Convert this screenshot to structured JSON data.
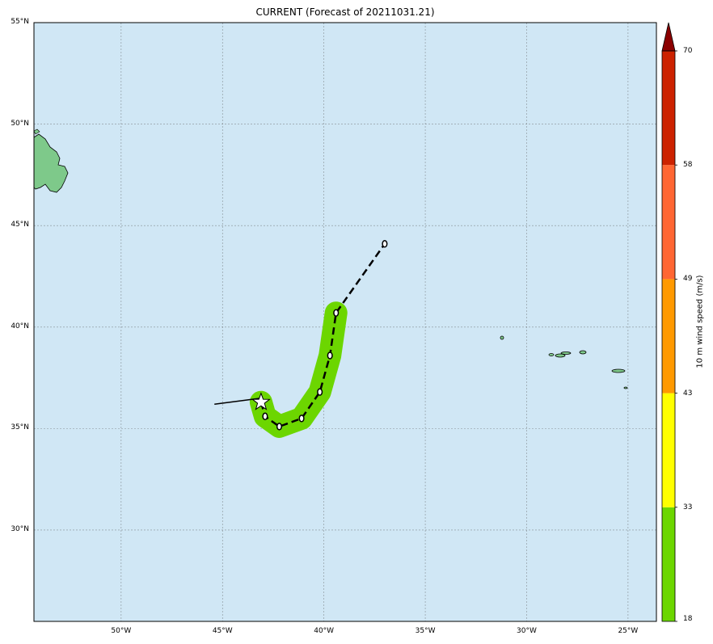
{
  "title": "CURRENT (Forecast of 20211031.21)",
  "map": {
    "ocean_color": "#d0e7f5",
    "land_color": "#7ec98a",
    "grid": true,
    "lat_labels": [
      "55°N",
      "50°N",
      "45°N",
      "40°N",
      "35°N",
      "30°N"
    ],
    "lon_labels": [
      "50°W",
      "45°W",
      "40°W",
      "35°W",
      "30°W",
      "25°W"
    ],
    "lon_range": [
      -54.3,
      -23.6
    ],
    "lat_range": [
      25.5,
      55.0
    ]
  },
  "storm": {
    "past_track": [
      [
        -45.4,
        36.2
      ],
      [
        -43.1,
        36.5
      ]
    ],
    "current_position": [
      -43.1,
      36.3
    ],
    "current_marker": "star-icon",
    "forecast_track": [
      [
        -43.1,
        36.3
      ],
      [
        -42.9,
        35.6
      ],
      [
        -42.2,
        35.1
      ],
      [
        -41.1,
        35.5
      ],
      [
        -40.2,
        36.8
      ],
      [
        -39.7,
        38.6
      ],
      [
        -39.4,
        40.7
      ],
      [
        -37.0,
        44.1
      ]
    ],
    "wind_swath_color": "#6cd600"
  },
  "colorbar": {
    "label": "10 m wind speed (m/s)",
    "ticks": [
      "18",
      "33",
      "43",
      "49",
      "58",
      "70"
    ],
    "colors": [
      "#6cd600",
      "#ffff00",
      "#ff9900",
      "#ff6633",
      "#cc2200",
      "#8b0000"
    ]
  }
}
